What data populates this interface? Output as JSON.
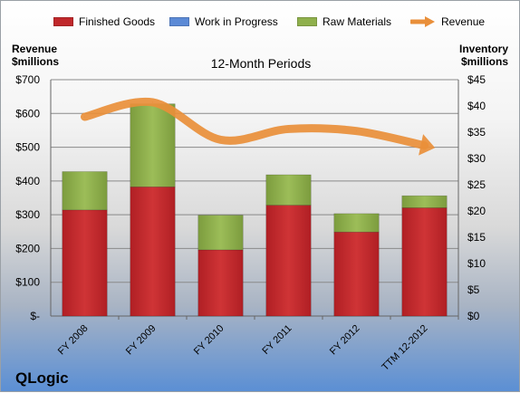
{
  "chart_data": {
    "type": "bar",
    "subtitle": "12-Month Periods",
    "company": "QLogic",
    "left_axis": {
      "label_line1": "Revenue",
      "label_line2": "$millions",
      "ylim": [
        0,
        700
      ],
      "ticks": [
        {
          "value": 0,
          "label": "$-"
        },
        {
          "value": 100,
          "label": "$100"
        },
        {
          "value": 200,
          "label": "$200"
        },
        {
          "value": 300,
          "label": "$300"
        },
        {
          "value": 400,
          "label": "$400"
        },
        {
          "value": 500,
          "label": "$500"
        },
        {
          "value": 600,
          "label": "$600"
        },
        {
          "value": 700,
          "label": "$700"
        }
      ]
    },
    "right_axis": {
      "label_line1": "Inventory",
      "label_line2": "$millions",
      "ylim": [
        0,
        45
      ],
      "ticks": [
        {
          "value": 0,
          "label": "$0"
        },
        {
          "value": 5,
          "label": "$5"
        },
        {
          "value": 10,
          "label": "$10"
        },
        {
          "value": 15,
          "label": "$15"
        },
        {
          "value": 20,
          "label": "$20"
        },
        {
          "value": 25,
          "label": "$25"
        },
        {
          "value": 30,
          "label": "$30"
        },
        {
          "value": 35,
          "label": "$35"
        },
        {
          "value": 40,
          "label": "$40"
        },
        {
          "value": 45,
          "label": "$45"
        }
      ]
    },
    "categories": [
      "FY 2008",
      "FY 2009",
      "FY 2010",
      "FY 2011",
      "FY 2012",
      "TTM 12-2012"
    ],
    "series": [
      {
        "name": "Finished Goods",
        "color": "#c0282b",
        "axis": "right",
        "stacked": true,
        "values": [
          20.2,
          24.6,
          12.6,
          21.1,
          16.0,
          20.6
        ]
      },
      {
        "name": "Work in Progress",
        "color": "#5b8ad6",
        "axis": "right",
        "stacked": true,
        "values": [
          0,
          0,
          0,
          0,
          0,
          0
        ]
      },
      {
        "name": "Raw Materials",
        "color": "#8fb04c",
        "axis": "right",
        "stacked": true,
        "values": [
          7.3,
          15.8,
          6.6,
          5.8,
          3.5,
          2.3
        ]
      },
      {
        "name": "Revenue",
        "color": "#e98f3a",
        "axis": "left",
        "type": "line",
        "values": [
          590,
          633,
          522,
          554,
          548,
          505
        ]
      }
    ],
    "legend_position": "top",
    "grid": true
  }
}
